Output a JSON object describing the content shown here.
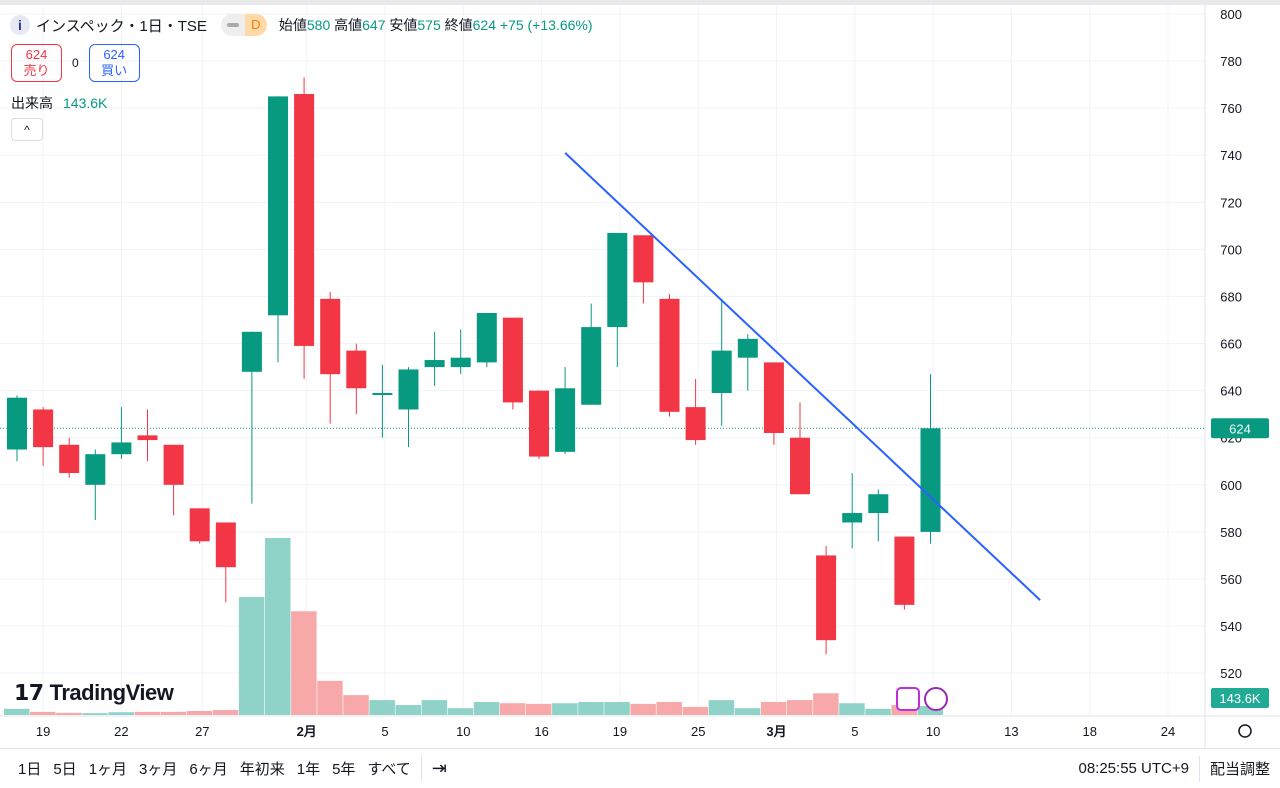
{
  "header": {
    "title": "インスペック・1日・TSE",
    "interval_badge": "D",
    "open_label": "始値",
    "open": "580",
    "high_label": "高値",
    "high": "647",
    "low_label": "安値",
    "low": "575",
    "close_label": "終値",
    "close": "624",
    "change": "+75 (+13.66%)"
  },
  "trade": {
    "sell_price": "624",
    "sell_label": "売り",
    "spread": "0",
    "buy_price": "624",
    "buy_label": "買い"
  },
  "volume": {
    "label": "出来高",
    "value": "143.6K"
  },
  "collapse_icon": "chevron-up-icon",
  "logo": {
    "text": "TradingView",
    "mark": "TV"
  },
  "price_axis": {
    "ticks": [
      800,
      780,
      760,
      740,
      720,
      700,
      680,
      660,
      640,
      620,
      600,
      580,
      560,
      540,
      520
    ],
    "last_price": "624",
    "last_volume": "143.6K"
  },
  "time_axis": [
    {
      "label": "19",
      "i": 1
    },
    {
      "label": "22",
      "i": 4
    },
    {
      "label": "27",
      "i": 7.1
    },
    {
      "label": "2月",
      "i": 11.1,
      "bold": true
    },
    {
      "label": "5",
      "i": 14.1
    },
    {
      "label": "10",
      "i": 17.1
    },
    {
      "label": "16",
      "i": 20.1
    },
    {
      "label": "19",
      "i": 23.1
    },
    {
      "label": "25",
      "i": 26.1
    },
    {
      "label": "3月",
      "i": 29.1,
      "bold": true
    },
    {
      "label": "5",
      "i": 32.1
    },
    {
      "label": "10",
      "i": 35.1
    },
    {
      "label": "13",
      "i": 38.1
    },
    {
      "label": "18",
      "i": 41.1
    },
    {
      "label": "24",
      "i": 44.1
    }
  ],
  "colors": {
    "up": "#089981",
    "down": "#f23645",
    "up_vol": "#8fd3c8",
    "down_vol": "#f7a9a9",
    "trend": "#2962ff"
  },
  "chart_data": {
    "type": "candlestick",
    "ylim": [
      520,
      800
    ],
    "candles": [
      [
        615,
        637,
        638,
        610
      ],
      [
        632,
        616,
        633,
        608
      ],
      [
        617,
        605,
        620,
        603
      ],
      [
        600,
        613,
        615,
        585
      ],
      [
        613,
        618,
        633,
        611
      ],
      [
        621,
        619,
        632,
        610
      ],
      [
        617,
        600,
        617,
        587
      ],
      [
        590,
        576,
        590,
        575
      ],
      [
        584,
        565,
        584,
        550
      ],
      [
        648,
        665,
        665,
        592
      ],
      [
        672,
        765,
        765,
        652
      ],
      [
        766,
        659,
        773,
        645
      ],
      [
        679,
        647,
        682,
        626
      ],
      [
        657,
        641,
        660,
        630
      ],
      [
        639,
        639,
        651,
        620
      ],
      [
        632,
        649,
        650,
        616
      ],
      [
        650,
        653,
        665,
        642
      ],
      [
        650,
        654,
        666,
        647
      ],
      [
        652,
        673,
        673,
        650
      ],
      [
        671,
        635,
        671,
        632
      ],
      [
        640,
        612,
        640,
        611
      ],
      [
        614,
        641,
        650,
        613
      ],
      [
        634,
        667,
        677,
        634
      ],
      [
        667,
        707,
        707,
        650
      ],
      [
        706,
        686,
        706,
        677
      ],
      [
        679,
        631,
        681,
        629
      ],
      [
        633,
        619,
        645,
        617
      ],
      [
        639,
        657,
        679,
        625
      ],
      [
        654,
        662,
        664,
        640
      ],
      [
        652,
        622,
        652,
        617
      ],
      [
        620,
        596,
        635,
        596
      ],
      [
        570,
        534,
        574,
        528
      ],
      [
        584,
        588,
        605,
        573
      ],
      [
        588,
        596,
        598,
        576
      ],
      [
        578,
        549,
        578,
        547
      ],
      [
        580,
        624,
        647,
        575
      ]
    ],
    "volumes_k": [
      100,
      50,
      35,
      30,
      45,
      50,
      50,
      65,
      80,
      1900,
      2850,
      1670,
      550,
      320,
      240,
      160,
      240,
      110,
      210,
      190,
      180,
      190,
      210,
      210,
      180,
      210,
      130,
      240,
      110,
      210,
      240,
      350,
      190,
      100,
      160,
      143.6
    ],
    "trendline": {
      "from": {
        "i": 21,
        "price": 741
      },
      "to": {
        "i": 39.2,
        "price": 551
      }
    }
  },
  "toolbar": {
    "ranges": [
      "1日",
      "5日",
      "1ヶ月",
      "3ヶ月",
      "6ヶ月",
      "年初来",
      "1年",
      "5年",
      "すべて"
    ],
    "goto_icon": "calendar-goto-icon",
    "time": "08:25:55 UTC+9",
    "adjust": "配当調整"
  }
}
